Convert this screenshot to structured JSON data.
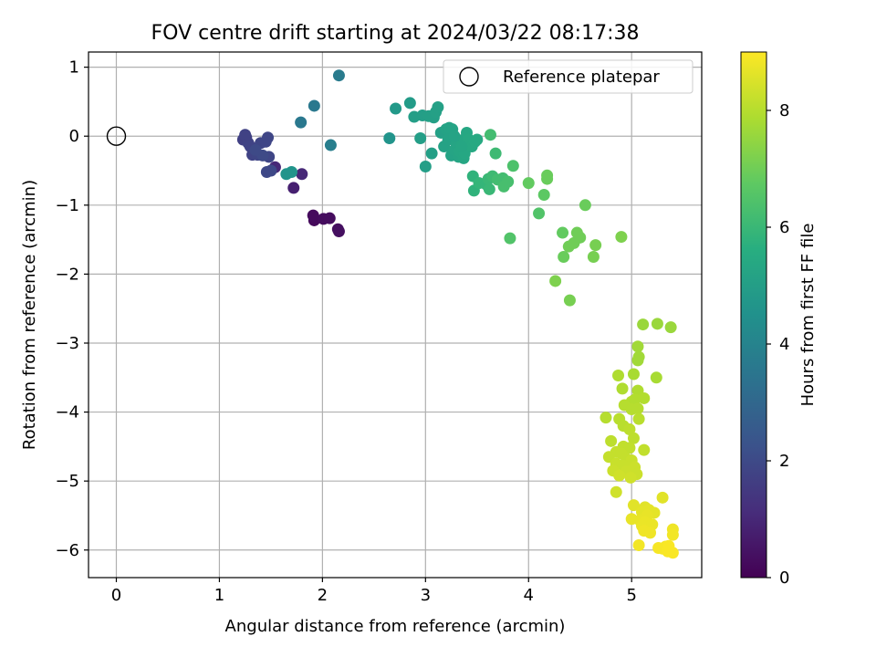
{
  "chart_data": {
    "type": "scatter",
    "title": "FOV centre drift starting at 2024/03/22 08:17:38",
    "xlabel": "Angular distance from reference (arcmin)",
    "ylabel": "Rotation from reference (arcmin)",
    "xlim": [
      -0.27,
      5.68
    ],
    "ylim": [
      -6.4,
      1.22
    ],
    "xticks": [
      0,
      1,
      2,
      3,
      4,
      5
    ],
    "yticks": [
      1,
      0,
      -1,
      -2,
      -3,
      -4,
      -5,
      -6
    ],
    "grid": true,
    "legend": {
      "placement": "top-right",
      "entries": [
        "Reference platepar"
      ]
    },
    "reference_point": {
      "x": 0,
      "y": 0
    },
    "colorbar": {
      "label": "Hours from first FF file",
      "range": [
        0,
        9
      ],
      "ticks": [
        0,
        2,
        4,
        6,
        8
      ],
      "colormap": "viridis"
    },
    "points": [
      {
        "x": 1.92,
        "y": -1.22,
        "h": 0.2
      },
      {
        "x": 1.91,
        "y": -1.15,
        "h": 0.25
      },
      {
        "x": 2.01,
        "y": -1.2,
        "h": 0.3
      },
      {
        "x": 2.07,
        "y": -1.19,
        "h": 0.3
      },
      {
        "x": 2.15,
        "y": -1.35,
        "h": 0.35
      },
      {
        "x": 2.16,
        "y": -1.38,
        "h": 0.35
      },
      {
        "x": 1.72,
        "y": -0.75,
        "h": 0.8
      },
      {
        "x": 1.54,
        "y": -0.45,
        "h": 1.0
      },
      {
        "x": 1.8,
        "y": -0.55,
        "h": 1.0
      },
      {
        "x": 1.23,
        "y": -0.05,
        "h": 1.7
      },
      {
        "x": 1.26,
        "y": -0.02,
        "h": 1.7
      },
      {
        "x": 1.25,
        "y": 0.02,
        "h": 1.75
      },
      {
        "x": 1.28,
        "y": -0.1,
        "h": 1.75
      },
      {
        "x": 1.3,
        "y": -0.15,
        "h": 1.8
      },
      {
        "x": 1.32,
        "y": -0.27,
        "h": 1.8
      },
      {
        "x": 1.37,
        "y": -0.27,
        "h": 1.85
      },
      {
        "x": 1.4,
        "y": -0.1,
        "h": 1.85
      },
      {
        "x": 1.45,
        "y": -0.08,
        "h": 1.9
      },
      {
        "x": 1.47,
        "y": -0.02,
        "h": 1.9
      },
      {
        "x": 1.48,
        "y": -0.3,
        "h": 1.9
      },
      {
        "x": 1.46,
        "y": -0.52,
        "h": 1.95
      },
      {
        "x": 1.5,
        "y": -0.5,
        "h": 1.95
      },
      {
        "x": 1.42,
        "y": -0.28,
        "h": 2.0
      },
      {
        "x": 1.35,
        "y": -0.2,
        "h": 2.0
      },
      {
        "x": 1.65,
        "y": -0.55,
        "h": 4.6
      },
      {
        "x": 1.7,
        "y": -0.52,
        "h": 4.6
      },
      {
        "x": 1.79,
        "y": 0.2,
        "h": 3.6
      },
      {
        "x": 1.92,
        "y": 0.44,
        "h": 3.6
      },
      {
        "x": 2.16,
        "y": 0.88,
        "h": 3.7
      },
      {
        "x": 2.08,
        "y": -0.13,
        "h": 3.8
      },
      {
        "x": 2.65,
        "y": -0.03,
        "h": 4.6
      },
      {
        "x": 2.71,
        "y": 0.4,
        "h": 4.8
      },
      {
        "x": 2.85,
        "y": 0.48,
        "h": 4.9
      },
      {
        "x": 2.89,
        "y": 0.28,
        "h": 5.0
      },
      {
        "x": 2.95,
        "y": -0.03,
        "h": 5.0
      },
      {
        "x": 2.97,
        "y": 0.3,
        "h": 5.0
      },
      {
        "x": 3.0,
        "y": -0.44,
        "h": 5.0
      },
      {
        "x": 3.03,
        "y": 0.29,
        "h": 5.05
      },
      {
        "x": 3.06,
        "y": -0.25,
        "h": 5.05
      },
      {
        "x": 3.08,
        "y": 0.27,
        "h": 5.05
      },
      {
        "x": 3.1,
        "y": 0.35,
        "h": 5.1
      },
      {
        "x": 3.12,
        "y": 0.42,
        "h": 5.1
      },
      {
        "x": 3.15,
        "y": 0.05,
        "h": 5.1
      },
      {
        "x": 3.18,
        "y": -0.15,
        "h": 5.15
      },
      {
        "x": 3.2,
        "y": 0.1,
        "h": 5.15
      },
      {
        "x": 3.22,
        "y": -0.05,
        "h": 5.15
      },
      {
        "x": 3.23,
        "y": 0.12,
        "h": 5.2
      },
      {
        "x": 3.25,
        "y": -0.28,
        "h": 5.2
      },
      {
        "x": 3.26,
        "y": 0.1,
        "h": 5.2
      },
      {
        "x": 3.28,
        "y": -0.2,
        "h": 5.25
      },
      {
        "x": 3.3,
        "y": -0.1,
        "h": 5.25
      },
      {
        "x": 3.32,
        "y": -0.3,
        "h": 5.25
      },
      {
        "x": 3.33,
        "y": -0.22,
        "h": 5.3
      },
      {
        "x": 3.35,
        "y": -0.06,
        "h": 5.3
      },
      {
        "x": 3.37,
        "y": -0.32,
        "h": 5.3
      },
      {
        "x": 3.38,
        "y": -0.25,
        "h": 5.35
      },
      {
        "x": 3.4,
        "y": 0.05,
        "h": 5.35
      },
      {
        "x": 3.42,
        "y": -0.05,
        "h": 5.4
      },
      {
        "x": 3.45,
        "y": -0.15,
        "h": 5.4
      },
      {
        "x": 3.48,
        "y": -0.08,
        "h": 5.45
      },
      {
        "x": 3.5,
        "y": -0.05,
        "h": 5.45
      },
      {
        "x": 3.28,
        "y": 0.0,
        "h": 5.2
      },
      {
        "x": 3.35,
        "y": -0.15,
        "h": 5.3
      },
      {
        "x": 3.46,
        "y": -0.58,
        "h": 5.8
      },
      {
        "x": 3.47,
        "y": -0.79,
        "h": 5.8
      },
      {
        "x": 3.52,
        "y": -0.68,
        "h": 5.9
      },
      {
        "x": 3.59,
        "y": -0.7,
        "h": 5.9
      },
      {
        "x": 3.61,
        "y": -0.62,
        "h": 6.0
      },
      {
        "x": 3.62,
        "y": -0.77,
        "h": 6.0
      },
      {
        "x": 3.63,
        "y": 0.02,
        "h": 6.2
      },
      {
        "x": 3.65,
        "y": -0.58,
        "h": 6.1
      },
      {
        "x": 3.68,
        "y": -0.25,
        "h": 6.1
      },
      {
        "x": 3.7,
        "y": -0.63,
        "h": 6.2
      },
      {
        "x": 3.75,
        "y": -0.61,
        "h": 6.2
      },
      {
        "x": 3.76,
        "y": -0.73,
        "h": 6.3
      },
      {
        "x": 3.8,
        "y": -0.66,
        "h": 6.3
      },
      {
        "x": 3.82,
        "y": -1.48,
        "h": 6.5
      },
      {
        "x": 3.85,
        "y": -0.43,
        "h": 6.4
      },
      {
        "x": 4.0,
        "y": -0.68,
        "h": 6.8
      },
      {
        "x": 4.1,
        "y": -1.12,
        "h": 6.5
      },
      {
        "x": 4.15,
        "y": -0.85,
        "h": 6.7
      },
      {
        "x": 4.18,
        "y": -0.57,
        "h": 6.9
      },
      {
        "x": 4.18,
        "y": -0.62,
        "h": 6.9
      },
      {
        "x": 4.26,
        "y": -2.1,
        "h": 7.2
      },
      {
        "x": 4.33,
        "y": -1.4,
        "h": 6.8
      },
      {
        "x": 4.34,
        "y": -1.75,
        "h": 6.9
      },
      {
        "x": 4.39,
        "y": -1.6,
        "h": 7.0
      },
      {
        "x": 4.4,
        "y": -2.38,
        "h": 7.1
      },
      {
        "x": 4.44,
        "y": -1.55,
        "h": 7.0
      },
      {
        "x": 4.47,
        "y": -1.4,
        "h": 7.0
      },
      {
        "x": 4.5,
        "y": -1.47,
        "h": 7.0
      },
      {
        "x": 4.55,
        "y": -1.0,
        "h": 6.9
      },
      {
        "x": 4.63,
        "y": -1.75,
        "h": 7.1
      },
      {
        "x": 4.65,
        "y": -1.58,
        "h": 7.1
      },
      {
        "x": 4.9,
        "y": -1.46,
        "h": 7.2
      },
      {
        "x": 5.11,
        "y": -2.73,
        "h": 7.6
      },
      {
        "x": 5.25,
        "y": -2.72,
        "h": 7.6
      },
      {
        "x": 5.38,
        "y": -2.77,
        "h": 7.6
      },
      {
        "x": 5.06,
        "y": -3.05,
        "h": 7.7
      },
      {
        "x": 5.06,
        "y": -3.25,
        "h": 7.7
      },
      {
        "x": 5.07,
        "y": -3.2,
        "h": 7.7
      },
      {
        "x": 5.02,
        "y": -3.45,
        "h": 7.8
      },
      {
        "x": 5.24,
        "y": -3.5,
        "h": 7.8
      },
      {
        "x": 4.87,
        "y": -3.47,
        "h": 7.9
      },
      {
        "x": 4.91,
        "y": -3.66,
        "h": 7.9
      },
      {
        "x": 5.06,
        "y": -3.69,
        "h": 7.9
      },
      {
        "x": 5.0,
        "y": -3.85,
        "h": 7.95
      },
      {
        "x": 5.03,
        "y": -3.82,
        "h": 7.95
      },
      {
        "x": 5.12,
        "y": -3.8,
        "h": 7.95
      },
      {
        "x": 4.93,
        "y": -3.9,
        "h": 8.0
      },
      {
        "x": 5.0,
        "y": -3.96,
        "h": 8.0
      },
      {
        "x": 5.06,
        "y": -3.95,
        "h": 8.0
      },
      {
        "x": 4.75,
        "y": -4.08,
        "h": 8.0
      },
      {
        "x": 4.88,
        "y": -4.1,
        "h": 8.05
      },
      {
        "x": 5.07,
        "y": -4.1,
        "h": 8.05
      },
      {
        "x": 4.92,
        "y": -4.2,
        "h": 8.05
      },
      {
        "x": 4.98,
        "y": -4.25,
        "h": 8.1
      },
      {
        "x": 5.02,
        "y": -4.38,
        "h": 8.1
      },
      {
        "x": 4.8,
        "y": -4.42,
        "h": 8.1
      },
      {
        "x": 4.92,
        "y": -4.5,
        "h": 8.15
      },
      {
        "x": 4.98,
        "y": -4.52,
        "h": 8.15
      },
      {
        "x": 5.12,
        "y": -4.55,
        "h": 8.15
      },
      {
        "x": 4.85,
        "y": -4.58,
        "h": 8.2
      },
      {
        "x": 4.9,
        "y": -4.6,
        "h": 8.2
      },
      {
        "x": 4.78,
        "y": -4.65,
        "h": 8.2
      },
      {
        "x": 4.95,
        "y": -4.68,
        "h": 8.2
      },
      {
        "x": 5.0,
        "y": -4.7,
        "h": 8.25
      },
      {
        "x": 4.85,
        "y": -4.75,
        "h": 8.25
      },
      {
        "x": 4.92,
        "y": -4.78,
        "h": 8.25
      },
      {
        "x": 5.03,
        "y": -4.8,
        "h": 8.3
      },
      {
        "x": 4.82,
        "y": -4.85,
        "h": 8.3
      },
      {
        "x": 4.95,
        "y": -4.86,
        "h": 8.3
      },
      {
        "x": 5.05,
        "y": -4.9,
        "h": 8.3
      },
      {
        "x": 4.88,
        "y": -4.92,
        "h": 8.35
      },
      {
        "x": 4.99,
        "y": -4.95,
        "h": 8.35
      },
      {
        "x": 4.85,
        "y": -5.16,
        "h": 8.35
      },
      {
        "x": 5.3,
        "y": -5.24,
        "h": 8.6
      },
      {
        "x": 5.02,
        "y": -5.35,
        "h": 8.6
      },
      {
        "x": 5.13,
        "y": -5.38,
        "h": 8.6
      },
      {
        "x": 5.1,
        "y": -5.45,
        "h": 8.65
      },
      {
        "x": 5.17,
        "y": -5.42,
        "h": 8.65
      },
      {
        "x": 5.22,
        "y": -5.46,
        "h": 8.65
      },
      {
        "x": 5.15,
        "y": -5.5,
        "h": 8.7
      },
      {
        "x": 5.0,
        "y": -5.55,
        "h": 8.7
      },
      {
        "x": 5.08,
        "y": -5.57,
        "h": 8.7
      },
      {
        "x": 5.13,
        "y": -5.6,
        "h": 8.75
      },
      {
        "x": 5.1,
        "y": -5.65,
        "h": 8.75
      },
      {
        "x": 5.2,
        "y": -5.63,
        "h": 8.75
      },
      {
        "x": 5.12,
        "y": -5.72,
        "h": 8.8
      },
      {
        "x": 5.18,
        "y": -5.75,
        "h": 8.8
      },
      {
        "x": 5.4,
        "y": -5.7,
        "h": 8.8
      },
      {
        "x": 5.4,
        "y": -5.78,
        "h": 8.85
      },
      {
        "x": 5.07,
        "y": -5.93,
        "h": 8.85
      },
      {
        "x": 5.26,
        "y": -5.97,
        "h": 8.9
      },
      {
        "x": 5.3,
        "y": -5.98,
        "h": 8.9
      },
      {
        "x": 5.33,
        "y": -5.95,
        "h": 8.9
      },
      {
        "x": 5.35,
        "y": -6.02,
        "h": 8.95
      },
      {
        "x": 5.4,
        "y": -6.04,
        "h": 8.95
      },
      {
        "x": 5.36,
        "y": -5.94,
        "h": 8.95
      }
    ]
  }
}
